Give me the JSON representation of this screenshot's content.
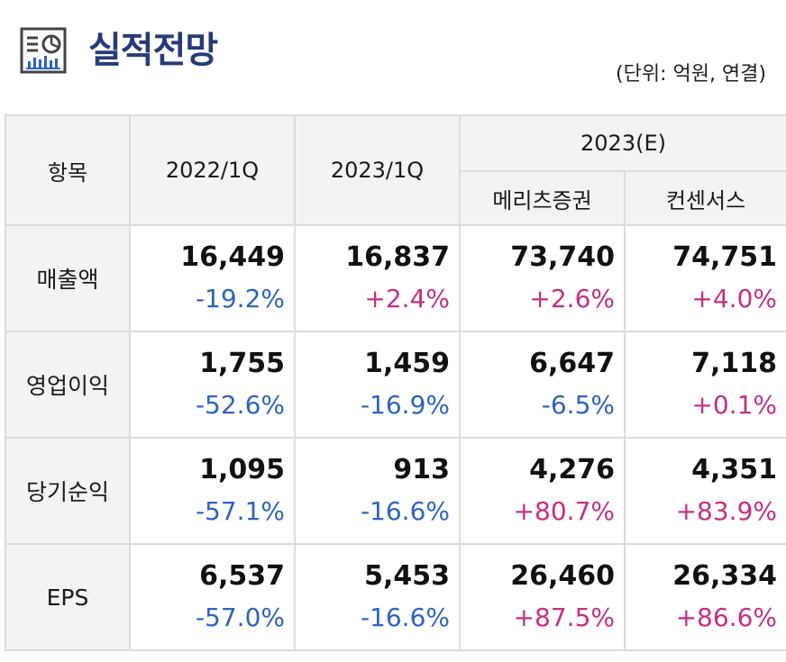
{
  "header": {
    "icon": "report-chart-icon",
    "title": "실적전망",
    "unit": "(단위: 억원, 연결)"
  },
  "table": {
    "col_item": "항목",
    "col_2022": "2022/1Q",
    "col_2023": "2023/1Q",
    "col_forecast": "2023(E)",
    "col_meritz": "메리츠증권",
    "col_consensus": "컨센서스",
    "rows": [
      {
        "label": "매출액",
        "cells": [
          {
            "value": "16,449",
            "change": "-19.2%"
          },
          {
            "value": "16,837",
            "change": "+2.4%"
          },
          {
            "value": "73,740",
            "change": "+2.6%"
          },
          {
            "value": "74,751",
            "change": "+4.0%"
          }
        ]
      },
      {
        "label": "영업이익",
        "cells": [
          {
            "value": "1,755",
            "change": "-52.6%"
          },
          {
            "value": "1,459",
            "change": "-16.9%"
          },
          {
            "value": "6,647",
            "change": "-6.5%"
          },
          {
            "value": "7,118",
            "change": "+0.1%"
          }
        ]
      },
      {
        "label": "당기순익",
        "cells": [
          {
            "value": "1,095",
            "change": "-57.1%"
          },
          {
            "value": "913",
            "change": "-16.6%"
          },
          {
            "value": "4,276",
            "change": "+80.7%"
          },
          {
            "value": "4,351",
            "change": "+83.9%"
          }
        ]
      },
      {
        "label": "EPS",
        "cells": [
          {
            "value": "6,537",
            "change": "-57.0%"
          },
          {
            "value": "5,453",
            "change": "-16.6%"
          },
          {
            "value": "26,460",
            "change": "+87.5%"
          },
          {
            "value": "26,334",
            "change": "+86.6%"
          }
        ]
      }
    ]
  },
  "colors": {
    "title": "#283a7a",
    "negative": "#2f63c2",
    "positive": "#c62f83",
    "header_bg": "#f3f3f3",
    "border": "#dcdcdc"
  }
}
